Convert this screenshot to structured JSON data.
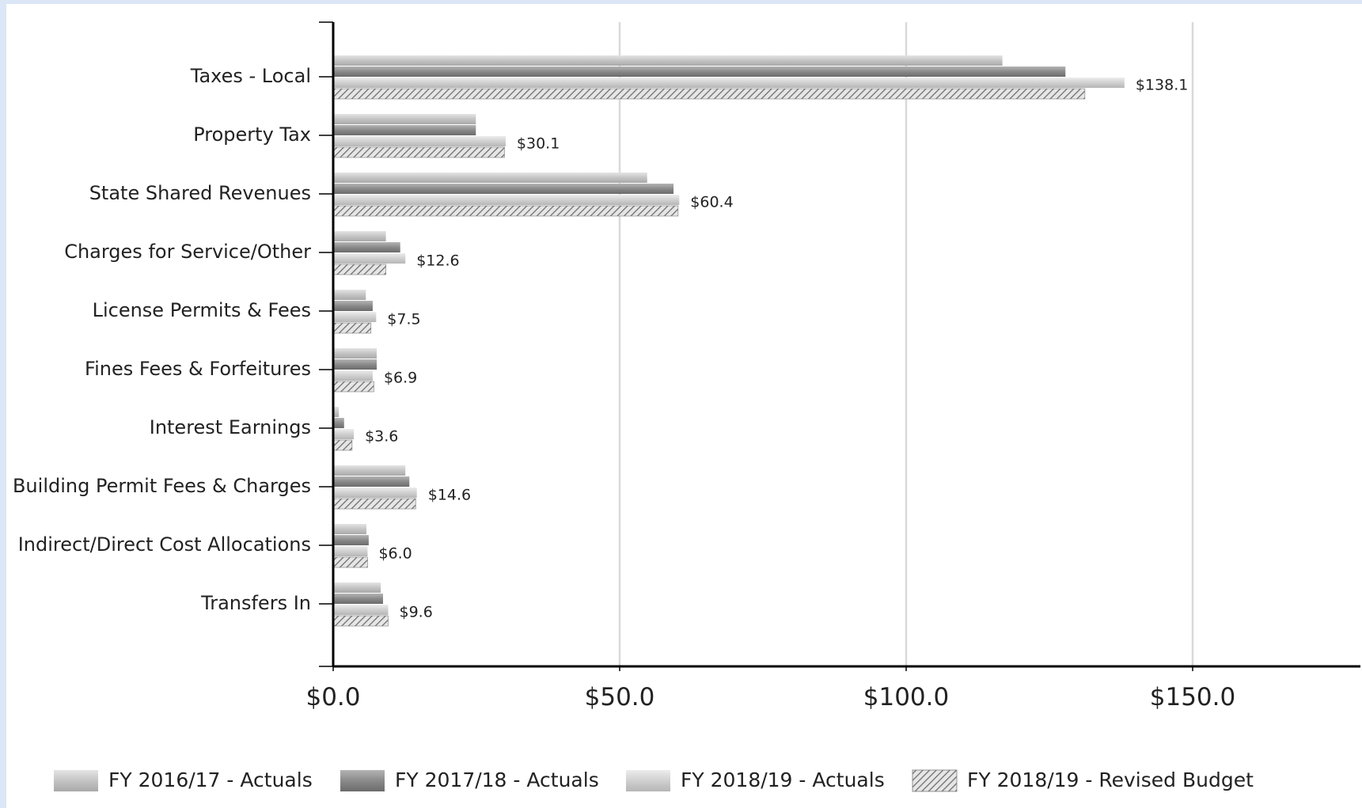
{
  "chart_data": {
    "type": "bar",
    "orientation": "horizontal",
    "title": "",
    "xlabel": "",
    "ylabel": "",
    "xlim": [
      0,
      180
    ],
    "xticks": [
      0,
      50,
      100,
      150
    ],
    "xtick_labels": [
      "$0.0",
      "$50.0",
      "$100.0",
      "$150.0"
    ],
    "grid": "vertical",
    "legend_position": "bottom",
    "categories": [
      "Taxes - Local",
      "Property Tax",
      "State Shared Revenues",
      "Charges for Service/Other",
      "License Permits & Fees",
      "Fines Fees & Forfeitures",
      "Interest Earnings",
      "Building Permit Fees & Charges",
      "Indirect/Direct Cost Allocations",
      "Transfers In"
    ],
    "series": [
      {
        "name": "FY 2016/17 - Actuals",
        "color": "#c8c8c8",
        "pattern": "solid",
        "values": [
          116.8,
          24.9,
          54.8,
          9.2,
          5.7,
          7.6,
          1.0,
          12.6,
          5.8,
          8.3
        ]
      },
      {
        "name": "FY 2017/18 - Actuals",
        "color": "#8f8f8f",
        "pattern": "solid",
        "values": [
          127.8,
          24.9,
          59.4,
          11.7,
          6.9,
          7.6,
          1.9,
          13.3,
          6.2,
          8.7
        ]
      },
      {
        "name": "FY 2018/19 - Actuals",
        "color": "#d2d2d2",
        "pattern": "solid",
        "values": [
          138.1,
          30.1,
          60.4,
          12.6,
          7.5,
          6.9,
          3.6,
          14.6,
          6.0,
          9.6
        ]
      },
      {
        "name": "FY 2018/19 - Revised Budget",
        "color": "#a8a8a8",
        "pattern": "hatched",
        "values": [
          131.2,
          29.9,
          60.2,
          9.2,
          6.6,
          7.1,
          3.3,
          14.4,
          6.0,
          9.6
        ]
      }
    ],
    "data_labels": [
      "$138.1",
      "$30.1",
      "$60.4",
      "$12.6",
      "$7.5",
      "$6.9",
      "$3.6",
      "$14.6",
      "$6.0",
      "$9.6"
    ],
    "data_label_series": 2
  },
  "colors": {
    "frame_blue": "#dbe6f6",
    "gridline": "#d9d9d9",
    "axis": "#000000"
  }
}
